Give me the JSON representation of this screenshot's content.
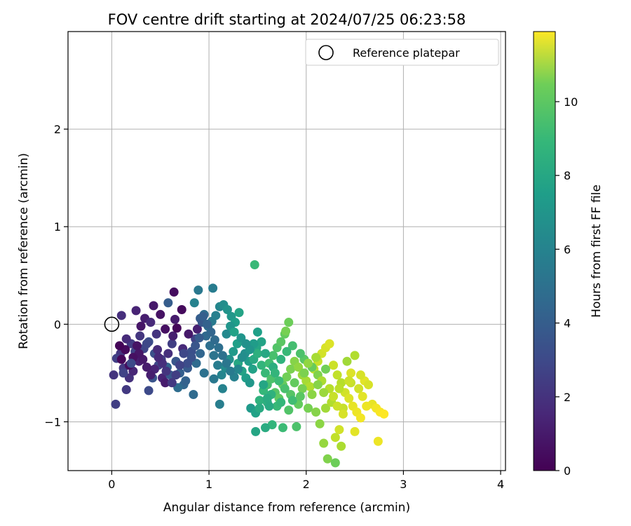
{
  "chart_data": {
    "type": "scatter",
    "title": "FOV centre drift starting at 2024/07/25 06:23:58",
    "xlabel": "Angular distance from reference (arcmin)",
    "ylabel": "Rotation from reference (arcmin)",
    "xlim": [
      -0.45,
      4.05
    ],
    "ylim": [
      -1.5,
      3.0
    ],
    "xticks": [
      0,
      1,
      2,
      3,
      4
    ],
    "yticks": [
      -1,
      0,
      1,
      2
    ],
    "grid": true,
    "legend": {
      "placement": "top-right",
      "entries": [
        "Reference platepar"
      ]
    },
    "reference_point": {
      "x": 0,
      "y": 0
    },
    "colorbar": {
      "label": "Hours from first FF file",
      "colormap": "viridis",
      "range": [
        0,
        11.9
      ],
      "ticks": [
        0,
        2,
        4,
        6,
        8,
        10
      ]
    },
    "points": [
      [
        0.1,
        0.09,
        1.6
      ],
      [
        0.25,
        0.14,
        1.2
      ],
      [
        0.43,
        0.19,
        0.8
      ],
      [
        0.64,
        0.33,
        0.4
      ],
      [
        0.5,
        0.1,
        0.6
      ],
      [
        0.58,
        0.22,
        3.5
      ],
      [
        0.72,
        0.15,
        0.3
      ],
      [
        0.65,
        0.05,
        0.9
      ],
      [
        0.55,
        -0.05,
        0.5
      ],
      [
        0.3,
        -0.02,
        0.7
      ],
      [
        0.34,
        0.06,
        1.0
      ],
      [
        0.4,
        0.02,
        1.4
      ],
      [
        0.46,
        -0.1,
        1.8
      ],
      [
        0.2,
        -0.2,
        2.1
      ],
      [
        0.15,
        -0.15,
        1.5
      ],
      [
        0.09,
        -0.3,
        1.9
      ],
      [
        0.05,
        -0.35,
        2.3
      ],
      [
        0.12,
        -0.45,
        2.0
      ],
      [
        0.18,
        -0.55,
        1.7
      ],
      [
        0.22,
        -0.48,
        1.3
      ],
      [
        0.28,
        -0.38,
        1.1
      ],
      [
        0.33,
        -0.25,
        2.5
      ],
      [
        0.38,
        -0.18,
        2.8
      ],
      [
        0.44,
        -0.3,
        3.0
      ],
      [
        0.48,
        -0.42,
        2.6
      ],
      [
        0.52,
        -0.55,
        1.2
      ],
      [
        0.55,
        -0.6,
        0.9
      ],
      [
        0.58,
        -0.3,
        1.6
      ],
      [
        0.62,
        -0.2,
        2.2
      ],
      [
        0.66,
        -0.38,
        3.2
      ],
      [
        0.7,
        -0.5,
        3.6
      ],
      [
        0.74,
        -0.62,
        3.9
      ],
      [
        0.78,
        -0.45,
        3.4
      ],
      [
        0.82,
        -0.28,
        2.9
      ],
      [
        0.86,
        -0.15,
        2.4
      ],
      [
        0.84,
        -0.72,
        4.1
      ],
      [
        0.76,
        -0.58,
        3.7
      ],
      [
        0.68,
        -0.65,
        4.2
      ],
      [
        0.6,
        -0.52,
        3.3
      ],
      [
        0.42,
        -0.55,
        3.1
      ],
      [
        0.38,
        -0.68,
        2.7
      ],
      [
        0.15,
        -0.67,
        2.0
      ],
      [
        0.02,
        -0.52,
        1.8
      ],
      [
        0.04,
        -0.82,
        2.2
      ],
      [
        0.24,
        -0.28,
        2.4
      ],
      [
        0.29,
        -0.12,
        1.9
      ],
      [
        0.36,
        -0.2,
        2.6
      ],
      [
        0.47,
        -0.26,
        1.5
      ],
      [
        0.51,
        -0.36,
        2.1
      ],
      [
        0.57,
        -0.44,
        3.8
      ],
      [
        0.63,
        -0.12,
        1.0
      ],
      [
        0.67,
        -0.04,
        0.2
      ],
      [
        0.73,
        -0.25,
        1.4
      ],
      [
        0.79,
        -0.1,
        0.8
      ],
      [
        0.88,
        -0.05,
        1.1
      ],
      [
        0.91,
        0.06,
        3.5
      ],
      [
        0.95,
        0.1,
        4.2
      ],
      [
        0.99,
        -0.02,
        4.5
      ],
      [
        1.03,
        0.03,
        4.9
      ],
      [
        1.07,
        0.09,
        5.2
      ],
      [
        1.11,
        0.18,
        5.5
      ],
      [
        1.15,
        0.2,
        5.8
      ],
      [
        1.19,
        0.15,
        6.1
      ],
      [
        1.23,
        0.08,
        6.3
      ],
      [
        1.27,
        0.02,
        6.6
      ],
      [
        1.31,
        0.12,
        6.9
      ],
      [
        0.89,
        0.35,
        4.8
      ],
      [
        1.04,
        0.37,
        5.0
      ],
      [
        0.85,
        0.22,
        5.3
      ],
      [
        0.93,
        0.02,
        3.3
      ],
      [
        0.97,
        -0.12,
        4.0
      ],
      [
        1.01,
        -0.22,
        4.3
      ],
      [
        1.05,
        -0.32,
        4.6
      ],
      [
        1.09,
        -0.42,
        5.0
      ],
      [
        1.13,
        -0.52,
        5.4
      ],
      [
        1.17,
        -0.45,
        5.7
      ],
      [
        1.21,
        -0.36,
        6.0
      ],
      [
        1.25,
        -0.28,
        6.4
      ],
      [
        1.29,
        -0.2,
        6.7
      ],
      [
        1.33,
        -0.14,
        6.2
      ],
      [
        1.37,
        -0.3,
        5.9
      ],
      [
        1.41,
        -0.38,
        6.5
      ],
      [
        1.45,
        -0.46,
        6.8
      ],
      [
        1.49,
        -0.24,
        7.0
      ],
      [
        1.11,
        -0.82,
        5.1
      ],
      [
        1.14,
        -0.66,
        5.3
      ],
      [
        1.05,
        -0.56,
        4.8
      ],
      [
        0.95,
        -0.5,
        4.4
      ],
      [
        0.91,
        -0.3,
        3.9
      ],
      [
        0.87,
        -0.4,
        4.1
      ],
      [
        1.18,
        -0.1,
        5.6
      ],
      [
        1.22,
        -0.02,
        6.2
      ],
      [
        1.26,
        -0.08,
        6.8
      ],
      [
        1.3,
        -0.4,
        7.1
      ],
      [
        1.34,
        -0.48,
        6.9
      ],
      [
        1.38,
        -0.55,
        6.6
      ],
      [
        1.42,
        -0.6,
        6.3
      ],
      [
        1.46,
        -0.36,
        7.2
      ],
      [
        1.5,
        -0.3,
        7.5
      ],
      [
        1.54,
        -0.42,
        7.8
      ],
      [
        1.58,
        -0.5,
        8.0
      ],
      [
        1.62,
        -0.4,
        8.2
      ],
      [
        1.66,
        -0.32,
        8.4
      ],
      [
        1.7,
        -0.24,
        8.6
      ],
      [
        1.74,
        -0.18,
        8.8
      ],
      [
        1.78,
        -0.1,
        9.0
      ],
      [
        1.82,
        0.02,
        9.2
      ],
      [
        1.79,
        -0.07,
        9.4
      ],
      [
        1.47,
        0.61,
        8.0
      ],
      [
        1.43,
        -0.86,
        6.4
      ],
      [
        1.48,
        -0.91,
        6.8
      ],
      [
        1.52,
        -0.78,
        7.6
      ],
      [
        1.56,
        -0.68,
        7.9
      ],
      [
        1.6,
        -0.62,
        8.3
      ],
      [
        1.64,
        -0.56,
        8.5
      ],
      [
        1.68,
        -0.7,
        8.7
      ],
      [
        1.72,
        -0.76,
        8.9
      ],
      [
        1.76,
        -0.62,
        9.1
      ],
      [
        1.8,
        -0.54,
        9.3
      ],
      [
        1.84,
        -0.46,
        9.5
      ],
      [
        1.88,
        -0.38,
        9.7
      ],
      [
        1.92,
        -0.44,
        9.9
      ],
      [
        1.96,
        -0.52,
        10.1
      ],
      [
        2.0,
        -0.58,
        10.3
      ],
      [
        2.04,
        -0.64,
        10.5
      ],
      [
        2.08,
        -0.46,
        10.7
      ],
      [
        2.12,
        -0.38,
        10.9
      ],
      [
        2.16,
        -0.3,
        11.1
      ],
      [
        2.2,
        -0.24,
        11.2
      ],
      [
        2.24,
        -0.2,
        11.3
      ],
      [
        2.28,
        -0.42,
        11.0
      ],
      [
        2.32,
        -0.52,
        10.8
      ],
      [
        2.36,
        -0.6,
        10.6
      ],
      [
        2.4,
        -0.7,
        11.1
      ],
      [
        2.44,
        -0.76,
        11.3
      ],
      [
        2.48,
        -0.84,
        11.5
      ],
      [
        2.52,
        -0.9,
        11.6
      ],
      [
        2.56,
        -0.96,
        11.7
      ],
      [
        2.6,
        -0.58,
        11.4
      ],
      [
        2.64,
        -0.62,
        11.2
      ],
      [
        2.68,
        -0.82,
        11.5
      ],
      [
        2.72,
        -0.86,
        11.7
      ],
      [
        2.76,
        -0.9,
        11.8
      ],
      [
        2.8,
        -0.92,
        11.9
      ],
      [
        2.74,
        -1.2,
        11.6
      ],
      [
        2.5,
        -1.1,
        11.4
      ],
      [
        2.34,
        -1.08,
        11.1
      ],
      [
        2.3,
        -1.16,
        10.8
      ],
      [
        2.36,
        -1.25,
        10.4
      ],
      [
        2.18,
        -1.22,
        10.0
      ],
      [
        2.22,
        -1.38,
        9.6
      ],
      [
        2.3,
        -1.42,
        9.2
      ],
      [
        2.14,
        -1.02,
        9.8
      ],
      [
        1.9,
        -1.05,
        8.5
      ],
      [
        1.76,
        -1.06,
        8.1
      ],
      [
        1.65,
        -1.03,
        7.8
      ],
      [
        1.58,
        -1.06,
        7.3
      ],
      [
        1.48,
        -1.1,
        7.0
      ],
      [
        1.52,
        -0.86,
        7.2
      ],
      [
        1.6,
        -0.8,
        7.5
      ],
      [
        1.7,
        -0.84,
        8.0
      ],
      [
        1.82,
        -0.88,
        8.6
      ],
      [
        1.92,
        -0.82,
        9.0
      ],
      [
        2.02,
        -0.86,
        9.4
      ],
      [
        2.1,
        -0.9,
        9.7
      ],
      [
        2.2,
        -0.86,
        10.2
      ],
      [
        2.26,
        -0.8,
        10.5
      ],
      [
        2.38,
        -0.86,
        10.9
      ],
      [
        2.46,
        -0.5,
        11.3
      ],
      [
        2.5,
        -0.32,
        10.5
      ],
      [
        2.42,
        -0.38,
        10.2
      ],
      [
        2.46,
        -0.6,
        10.9
      ],
      [
        2.54,
        -0.66,
        11.1
      ],
      [
        2.58,
        -0.74,
        11.4
      ],
      [
        2.38,
        -0.92,
        11.2
      ],
      [
        2.12,
        -0.52,
        9.6
      ],
      [
        2.06,
        -0.44,
        9.1
      ],
      [
        1.98,
        -0.36,
        8.8
      ],
      [
        1.94,
        -0.3,
        8.5
      ],
      [
        1.86,
        -0.22,
        8.3
      ],
      [
        1.8,
        -0.28,
        8.0
      ],
      [
        1.74,
        -0.36,
        7.7
      ],
      [
        1.66,
        -0.44,
        7.4
      ],
      [
        1.58,
        -0.3,
        7.1
      ],
      [
        1.54,
        -0.18,
        6.9
      ],
      [
        1.5,
        -0.08,
        6.7
      ],
      [
        1.46,
        -0.2,
        6.5
      ],
      [
        1.42,
        -0.26,
        6.2
      ],
      [
        1.38,
        -0.2,
        6.0
      ],
      [
        1.34,
        -0.34,
        5.8
      ],
      [
        1.3,
        -0.46,
        5.5
      ],
      [
        1.26,
        -0.54,
        5.2
      ],
      [
        1.22,
        -0.48,
        4.9
      ],
      [
        1.18,
        -0.4,
        4.7
      ],
      [
        1.14,
        -0.32,
        4.5
      ],
      [
        1.1,
        -0.24,
        4.3
      ],
      [
        1.06,
        -0.16,
        4.1
      ],
      [
        1.02,
        -0.08,
        3.9
      ],
      [
        0.98,
        0.0,
        3.7
      ],
      [
        0.94,
        0.08,
        3.6
      ],
      [
        0.9,
        -0.14,
        3.4
      ],
      [
        0.86,
        -0.22,
        3.2
      ],
      [
        0.82,
        -0.34,
        3.0
      ],
      [
        0.78,
        -0.4,
        2.8
      ],
      [
        0.74,
        -0.3,
        2.6
      ],
      [
        0.7,
        -0.42,
        2.4
      ],
      [
        0.66,
        -0.52,
        2.2
      ],
      [
        0.62,
        -0.6,
        2.0
      ],
      [
        0.56,
        -0.48,
        1.8
      ],
      [
        0.52,
        -0.4,
        1.6
      ],
      [
        0.48,
        -0.34,
        1.4
      ],
      [
        0.44,
        -0.46,
        1.2
      ],
      [
        0.4,
        -0.52,
        1.0
      ],
      [
        0.36,
        -0.44,
        0.9
      ],
      [
        0.32,
        -0.36,
        0.8
      ],
      [
        0.28,
        -0.3,
        0.7
      ],
      [
        0.26,
        -0.22,
        0.6
      ],
      [
        0.22,
        -0.34,
        0.5
      ],
      [
        0.18,
        -0.42,
        0.4
      ],
      [
        0.14,
        -0.26,
        0.3
      ],
      [
        0.1,
        -0.36,
        0.2
      ],
      [
        0.08,
        -0.22,
        0.1
      ],
      [
        0.12,
        -0.5,
        2.4
      ],
      [
        0.2,
        -0.4,
        2.7
      ],
      [
        1.98,
        -0.5,
        9.5
      ],
      [
        2.02,
        -0.4,
        9.9
      ],
      [
        2.1,
        -0.34,
        10.3
      ],
      [
        2.16,
        -0.58,
        10.4
      ],
      [
        2.24,
        -0.66,
        10.6
      ],
      [
        2.28,
        -0.74,
        10.9
      ],
      [
        2.32,
        -0.84,
        11.0
      ],
      [
        2.06,
        -0.72,
        9.8
      ],
      [
        1.96,
        -0.66,
        9.4
      ],
      [
        1.88,
        -0.6,
        9.0
      ],
      [
        1.84,
        -0.72,
        8.7
      ],
      [
        1.78,
        -0.66,
        8.4
      ],
      [
        1.72,
        -0.58,
        8.1
      ],
      [
        1.68,
        -0.5,
        7.8
      ],
      [
        1.64,
        -0.72,
        7.6
      ],
      [
        1.6,
        -0.76,
        7.3
      ],
      [
        1.56,
        -0.62,
        7.0
      ],
      [
        1.62,
        -0.84,
        7.2
      ],
      [
        1.74,
        -0.8,
        7.9
      ],
      [
        1.86,
        -0.78,
        8.2
      ],
      [
        1.94,
        -0.74,
        8.8
      ],
      [
        2.18,
        -0.7,
        10.1
      ],
      [
        2.34,
        -0.66,
        10.7
      ],
      [
        2.44,
        -0.58,
        11.0
      ],
      [
        2.56,
        -0.52,
        11.2
      ],
      [
        2.62,
        -0.84,
        11.6
      ],
      [
        2.2,
        -0.46,
        9.3
      ],
      [
        2.12,
        -0.62,
        9.7
      ]
    ]
  }
}
